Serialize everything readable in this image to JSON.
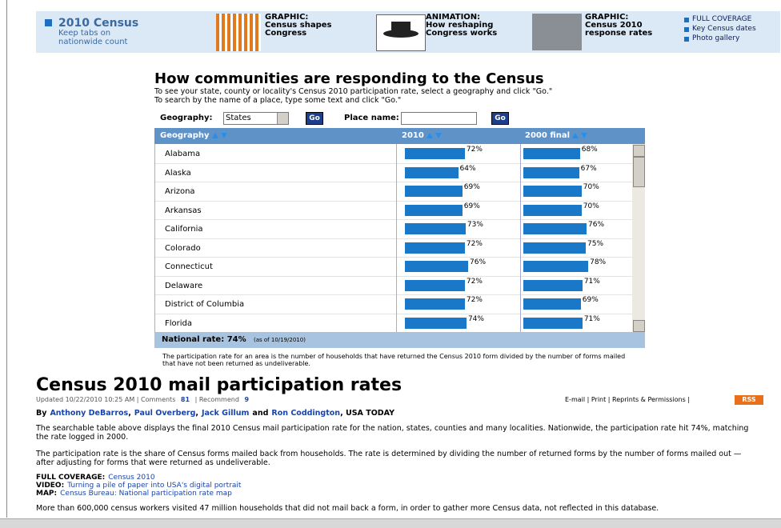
{
  "nav": {
    "brand": {
      "title": "2010 Census",
      "subtitle": [
        "Keep tabs on",
        "nationwide count"
      ]
    },
    "items": [
      {
        "kind": "GRAPHIC:",
        "lines": [
          "Census shapes",
          "Congress"
        ]
      },
      {
        "kind": "ANIMATION:",
        "lines": [
          "How reshaping",
          "Congress works"
        ]
      },
      {
        "kind": "GRAPHIC:",
        "lines": [
          "Census 2010",
          "response rates"
        ]
      }
    ],
    "links": [
      "FULL COVERAGE",
      "Key Census dates",
      "Photo gallery"
    ]
  },
  "widget": {
    "title": "How communities are responding to the Census",
    "instructions": [
      "To see your state, county or locality's Census 2010 participation rate, select a geography and click \"Go.\"",
      "To search by the name of a place, type some text and click \"Go.\""
    ],
    "geography_label": "Geography:",
    "geography_value": "States",
    "go": "Go",
    "place_label": "Place name:",
    "columns": [
      "Geography",
      "2010",
      "2000 final"
    ],
    "rows": [
      {
        "name": "Alabama",
        "rate_2010": 72,
        "label_2010": "72%",
        "rate_2000": 68,
        "label_2000": "68%"
      },
      {
        "name": "Alaska",
        "rate_2010": 64,
        "label_2010": "64%",
        "rate_2000": 67,
        "label_2000": "67%"
      },
      {
        "name": "Arizona",
        "rate_2010": 69,
        "label_2010": "69%",
        "rate_2000": 70,
        "label_2000": "70%"
      },
      {
        "name": "Arkansas",
        "rate_2010": 69,
        "label_2010": "69%",
        "rate_2000": 70,
        "label_2000": "70%"
      },
      {
        "name": "California",
        "rate_2010": 73,
        "label_2010": "73%",
        "rate_2000": 76,
        "label_2000": "76%"
      },
      {
        "name": "Colorado",
        "rate_2010": 72,
        "label_2010": "72%",
        "rate_2000": 75,
        "label_2000": "75%"
      },
      {
        "name": "Connecticut",
        "rate_2010": 76,
        "label_2010": "76%",
        "rate_2000": 78,
        "label_2000": "78%"
      },
      {
        "name": "Delaware",
        "rate_2010": 72,
        "label_2010": "72%",
        "rate_2000": 71,
        "label_2000": "71%"
      },
      {
        "name": "District of Columbia",
        "rate_2010": 72,
        "label_2010": "72%",
        "rate_2000": 69,
        "label_2000": "69%"
      },
      {
        "name": "Florida",
        "rate_2010": 74,
        "label_2010": "74%",
        "rate_2000": 71,
        "label_2000": "71%"
      }
    ],
    "national_label": "National rate: 74%",
    "national_note": "(as of 10/19/2010)",
    "note": "The participation rate for an area is the number of households that have returned the Census 2010 form divided by the number of forms mailed that have not been returned as undeliverable."
  },
  "article": {
    "headline": "Census 2010 mail participation rates",
    "updated": "Updated 10/22/2010 10:25 AM | Comments",
    "comments": 81,
    "recommend": "| Recommend",
    "recommends": 9,
    "tools": "E-mail | Print | Reprints & Permissions |",
    "rss": "RSS",
    "byline": [
      {
        "text": "By"
      },
      {
        "text": "Anthony DeBarros",
        "link": true
      },
      {
        "text": ","
      },
      {
        "text": "Paul Overberg",
        "link": true
      },
      {
        "text": ","
      },
      {
        "text": "Jack Gillum",
        "link": true
      },
      {
        "text": "and"
      },
      {
        "text": "Ron Coddington",
        "link": true
      },
      {
        "text": ", USA TODAY"
      }
    ],
    "paragraphs": [
      "The searchable table above displays the final 2010 Census mail participation rate for the nation, states, counties and many localities. Nationwide, the participation rate hit 74%, matching the rate logged in 2000.",
      "The participation rate is the share of Census forms mailed back from households. The rate is determined by dividing the number of returned forms by the number of forms mailed out — after adjusting for forms that were returned as undeliverable."
    ],
    "related": [
      {
        "label": "FULL COVERAGE:",
        "link": "Census 2010"
      },
      {
        "label": "VIDEO:",
        "link": "Turning a pile of paper into USA's digital portrait"
      },
      {
        "label": "MAP:",
        "link": "Census Bureau: National participation rate map"
      }
    ],
    "closing": "More than 600,000 census workers visited 47 million households that did not mail back a form, in order to gather more Census data, not reflected in this database."
  }
}
